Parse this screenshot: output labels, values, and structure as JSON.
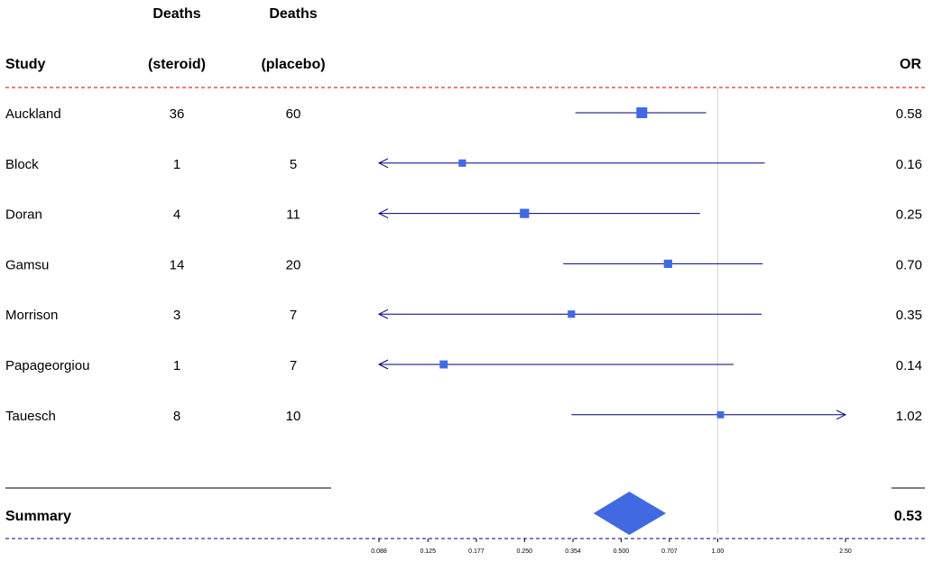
{
  "chart_data": {
    "type": "forest",
    "headers": {
      "study": "Study",
      "deaths_steroid_line1": "Deaths",
      "deaths_steroid_line2": "(steroid)",
      "deaths_placebo_line1": "Deaths",
      "deaths_placebo_line2": "(placebo)",
      "or": "OR"
    },
    "x_ticks": [
      {
        "value": 0.088,
        "label": "0.088"
      },
      {
        "value": 0.125,
        "label": "0.125"
      },
      {
        "value": 0.177,
        "label": "0.177"
      },
      {
        "value": 0.25,
        "label": "0.250"
      },
      {
        "value": 0.354,
        "label": "0.354"
      },
      {
        "value": 0.5,
        "label": "0.500"
      },
      {
        "value": 0.707,
        "label": "0.707"
      },
      {
        "value": 1.0,
        "label": "1.00"
      },
      {
        "value": 2.5,
        "label": "2.50"
      }
    ],
    "xlim": [
      0.088,
      2.5
    ],
    "log_scale": true,
    "reference_line": 1.0,
    "studies": [
      {
        "name": "Auckland",
        "deaths_steroid": "36",
        "deaths_placebo": "60",
        "or_label": "0.58",
        "or": 0.58,
        "lower": 0.36,
        "upper": 0.92,
        "weight": 1.0,
        "arrow_left": false,
        "arrow_right": false
      },
      {
        "name": "Block",
        "deaths_steroid": "1",
        "deaths_placebo": "5",
        "or_label": "0.16",
        "or": 0.16,
        "lower": 0.088,
        "upper": 1.4,
        "weight": 0.45,
        "arrow_left": true,
        "arrow_right": false
      },
      {
        "name": "Doran",
        "deaths_steroid": "4",
        "deaths_placebo": "11",
        "or_label": "0.25",
        "or": 0.25,
        "lower": 0.088,
        "upper": 0.88,
        "weight": 0.75,
        "arrow_left": true,
        "arrow_right": false
      },
      {
        "name": "Gamsu",
        "deaths_steroid": "14",
        "deaths_placebo": "20",
        "or_label": "0.70",
        "or": 0.7,
        "lower": 0.33,
        "upper": 1.38,
        "weight": 0.6,
        "arrow_left": false,
        "arrow_right": false
      },
      {
        "name": "Morrison",
        "deaths_steroid": "3",
        "deaths_placebo": "7",
        "or_label": "0.35",
        "or": 0.35,
        "lower": 0.088,
        "upper": 1.37,
        "weight": 0.45,
        "arrow_left": true,
        "arrow_right": false
      },
      {
        "name": "Papageorgiou",
        "deaths_steroid": "1",
        "deaths_placebo": "7",
        "or_label": "0.14",
        "or": 0.14,
        "lower": 0.088,
        "upper": 1.12,
        "weight": 0.55,
        "arrow_left": true,
        "arrow_right": false
      },
      {
        "name": "Tauesch",
        "deaths_steroid": "8",
        "deaths_placebo": "10",
        "or_label": "1.02",
        "or": 1.02,
        "lower": 0.35,
        "upper": 2.5,
        "weight": 0.4,
        "arrow_left": false,
        "arrow_right": true
      }
    ],
    "summary": {
      "name": "Summary",
      "or_label": "0.53",
      "or": 0.53,
      "lower": 0.41,
      "upper": 0.69
    },
    "colors": {
      "box": "#4169E1",
      "ci_line": "#000080",
      "reference_line": "#d3d3d3",
      "header_dash": "#cc0000",
      "footer_dash": "#000080",
      "summary_diamond": "#4169E1"
    }
  }
}
